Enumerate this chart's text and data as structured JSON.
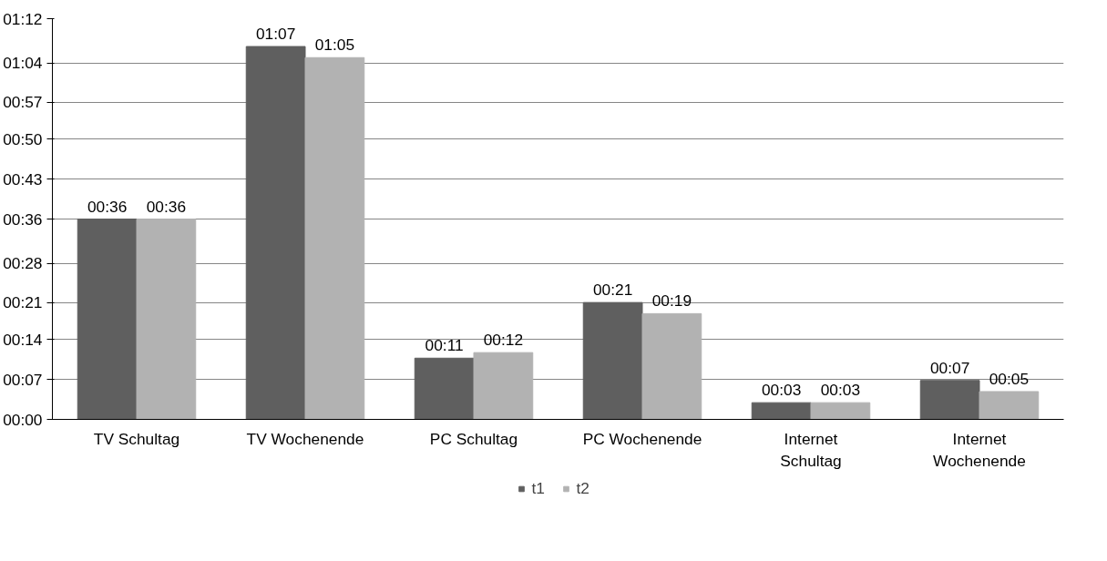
{
  "chart_data": {
    "type": "bar",
    "categories": [
      "TV Schultag",
      "TV Wochenende",
      "PC Schultag",
      "PC Wochenende",
      "Internet Schultag",
      "Internet Wochenende"
    ],
    "series": [
      {
        "name": "t1",
        "color": "#5f5f5f",
        "values": [
          36,
          67,
          11,
          21,
          3,
          7
        ],
        "value_labels": [
          "00:36",
          "01:07",
          "00:11",
          "00:21",
          "00:03",
          "00:07"
        ]
      },
      {
        "name": "t2",
        "color": "#b2b2b2",
        "values": [
          36,
          65,
          12,
          19,
          3,
          5
        ],
        "value_labels": [
          "00:36",
          "01:05",
          "00:12",
          "00:19",
          "00:03",
          "00:05"
        ]
      }
    ],
    "ylim": [
      0,
      72
    ],
    "yticks": [
      {
        "value": 0,
        "label": "00:00"
      },
      {
        "value": 7.2,
        "label": "00:07"
      },
      {
        "value": 14.4,
        "label": "00:14"
      },
      {
        "value": 21,
        "label": "00:21"
      },
      {
        "value": 28,
        "label": "00:28"
      },
      {
        "value": 36,
        "label": "00:36"
      },
      {
        "value": 43.2,
        "label": "00:43"
      },
      {
        "value": 50.4,
        "label": "00:50"
      },
      {
        "value": 57,
        "label": "00:57"
      },
      {
        "value": 64,
        "label": "01:04"
      },
      {
        "value": 72,
        "label": "01:12"
      }
    ],
    "grid": "y",
    "legend": "bottom"
  }
}
